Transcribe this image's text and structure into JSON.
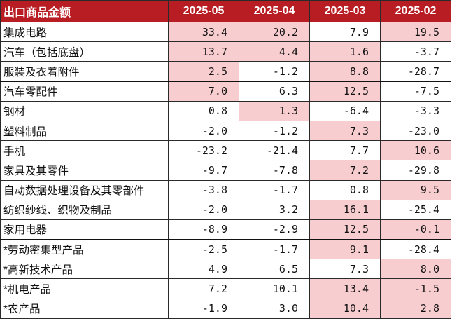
{
  "table": {
    "header": {
      "name": "出口商品金额",
      "columns": [
        "2025-05",
        "2025-04",
        "2025-03",
        "2025-02"
      ]
    },
    "highlight_color": "#f8cdd0",
    "header_color": "#b81d23",
    "rows": [
      {
        "name": "集成电路",
        "values": [
          "33.4",
          "20.2",
          "7.9",
          "19.5"
        ],
        "highlight": [
          true,
          true,
          false,
          true
        ]
      },
      {
        "name": "汽车（包括底盘）",
        "values": [
          "13.7",
          "4.4",
          "1.6",
          "-3.7"
        ],
        "highlight": [
          true,
          true,
          true,
          false
        ]
      },
      {
        "name": "服装及衣着附件",
        "values": [
          "2.5",
          "-1.2",
          "8.8",
          "-28.7"
        ],
        "highlight": [
          true,
          false,
          true,
          false
        ]
      },
      {
        "name": "汽车零配件",
        "values": [
          "7.0",
          "6.3",
          "12.5",
          "-7.5"
        ],
        "highlight": [
          true,
          false,
          true,
          false
        ]
      },
      {
        "name": "钢材",
        "values": [
          "0.8",
          "1.3",
          "-6.4",
          "-3.3"
        ],
        "highlight": [
          false,
          true,
          false,
          false
        ]
      },
      {
        "name": "塑料制品",
        "values": [
          "-2.0",
          "-1.2",
          "7.3",
          "-23.0"
        ],
        "highlight": [
          false,
          false,
          true,
          false
        ]
      },
      {
        "name": "手机",
        "values": [
          "-23.2",
          "-21.4",
          "7.7",
          "10.6"
        ],
        "highlight": [
          false,
          false,
          false,
          true
        ]
      },
      {
        "name": "家具及其零件",
        "values": [
          "-9.7",
          "-7.8",
          "7.2",
          "-29.8"
        ],
        "highlight": [
          false,
          false,
          true,
          false
        ]
      },
      {
        "name": "自动数据处理设备及其零部件",
        "values": [
          "-3.8",
          "-1.7",
          "0.8",
          "9.5"
        ],
        "highlight": [
          false,
          false,
          false,
          true
        ]
      },
      {
        "name": "纺织纱线、织物及制品",
        "values": [
          "-2.0",
          "3.2",
          "16.1",
          "-25.4"
        ],
        "highlight": [
          false,
          false,
          true,
          false
        ]
      },
      {
        "name": "家用电器",
        "values": [
          "-8.9",
          "-2.9",
          "12.5",
          "-0.1"
        ],
        "highlight": [
          false,
          false,
          true,
          true
        ]
      },
      {
        "name": "*劳动密集型产品",
        "values": [
          "-2.5",
          "-1.7",
          "9.1",
          "-28.4"
        ],
        "highlight": [
          false,
          false,
          true,
          false
        ]
      },
      {
        "name": "*高新技术产品",
        "values": [
          "4.9",
          "6.5",
          "7.3",
          "8.0"
        ],
        "highlight": [
          false,
          false,
          false,
          true
        ]
      },
      {
        "name": "*机电产品",
        "values": [
          "7.2",
          "10.1",
          "13.4",
          "-1.5"
        ],
        "highlight": [
          false,
          false,
          true,
          true
        ]
      },
      {
        "name": "*农产品",
        "values": [
          "-1.9",
          "3.0",
          "10.4",
          "2.8"
        ],
        "highlight": [
          false,
          false,
          true,
          true
        ]
      }
    ]
  }
}
